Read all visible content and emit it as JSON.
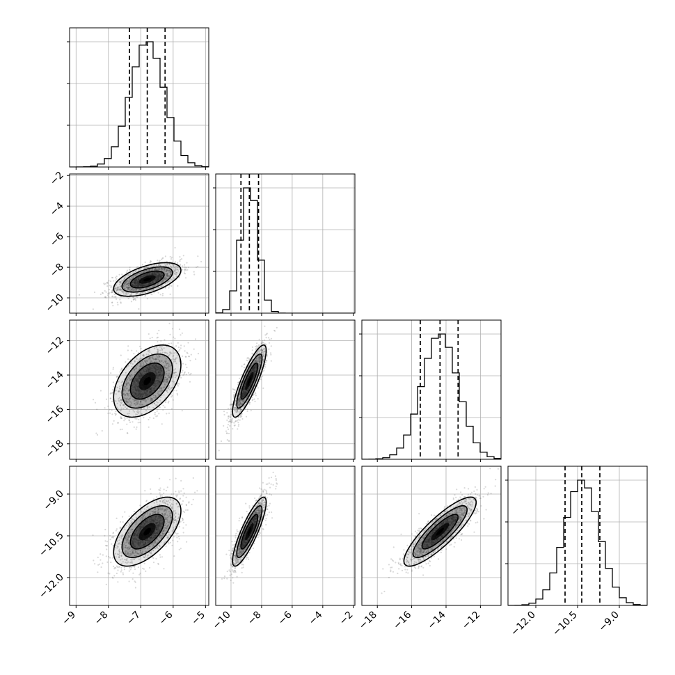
{
  "chart_data": {
    "type": "corner",
    "title": "",
    "parameters": [
      {
        "index": 0,
        "label": "",
        "range": [
          -9.2,
          -4.9
        ],
        "ticks": [
          -9,
          -8,
          -7,
          -6,
          -5
        ],
        "tick_labels": [
          "−9",
          "−8",
          "−7",
          "−6",
          "−5"
        ],
        "mean": -6.8,
        "std": 0.52,
        "quantiles": [
          -7.35,
          -6.8,
          -6.25
        ]
      },
      {
        "index": 1,
        "label": "",
        "range": [
          -11.0,
          -1.9
        ],
        "ticks": [
          -10,
          -8,
          -6,
          -4,
          -2
        ],
        "tick_labels": [
          "−10",
          "−8",
          "−6",
          "−4",
          "−2"
        ],
        "mean": -8.8,
        "std": 0.55,
        "quantiles": [
          -9.35,
          -8.8,
          -8.2
        ]
      },
      {
        "index": 2,
        "label": "",
        "range": [
          -18.9,
          -10.8
        ],
        "ticks": [
          -18,
          -16,
          -14,
          -12
        ],
        "tick_labels": [
          "−18",
          "−16",
          "−14",
          "−12"
        ],
        "mean": -14.35,
        "std": 1.05,
        "quantiles": [
          -15.5,
          -14.35,
          -13.3
        ]
      },
      {
        "index": 3,
        "label": "",
        "range": [
          -13.0,
          -8.0
        ],
        "ticks": [
          -12.0,
          -10.5,
          -9.0
        ],
        "tick_labels": [
          "−12.0",
          "−10.5",
          "−9.0"
        ],
        "mean": -10.35,
        "std": 0.62,
        "quantiles": [
          -10.95,
          -10.35,
          -9.7
        ]
      }
    ],
    "correlations": [
      {
        "pair": [
          1,
          0
        ],
        "rho": 0.55
      },
      {
        "pair": [
          2,
          0
        ],
        "rho": 0.45
      },
      {
        "pair": [
          2,
          1
        ],
        "rho": 0.85
      },
      {
        "pair": [
          3,
          0
        ],
        "rho": 0.6
      },
      {
        "pair": [
          3,
          1
        ],
        "rho": 0.85
      },
      {
        "pair": [
          3,
          2
        ],
        "rho": 0.85
      }
    ],
    "histogram_bins": 20,
    "contour_levels_sigma": [
      0.5,
      1.0,
      1.5,
      2.0
    ],
    "grid": true,
    "legend": "none",
    "colors": {
      "line": "#000000",
      "scatter": "#777777",
      "grid": "#b0b0b0",
      "density_fill": "#000000"
    }
  }
}
